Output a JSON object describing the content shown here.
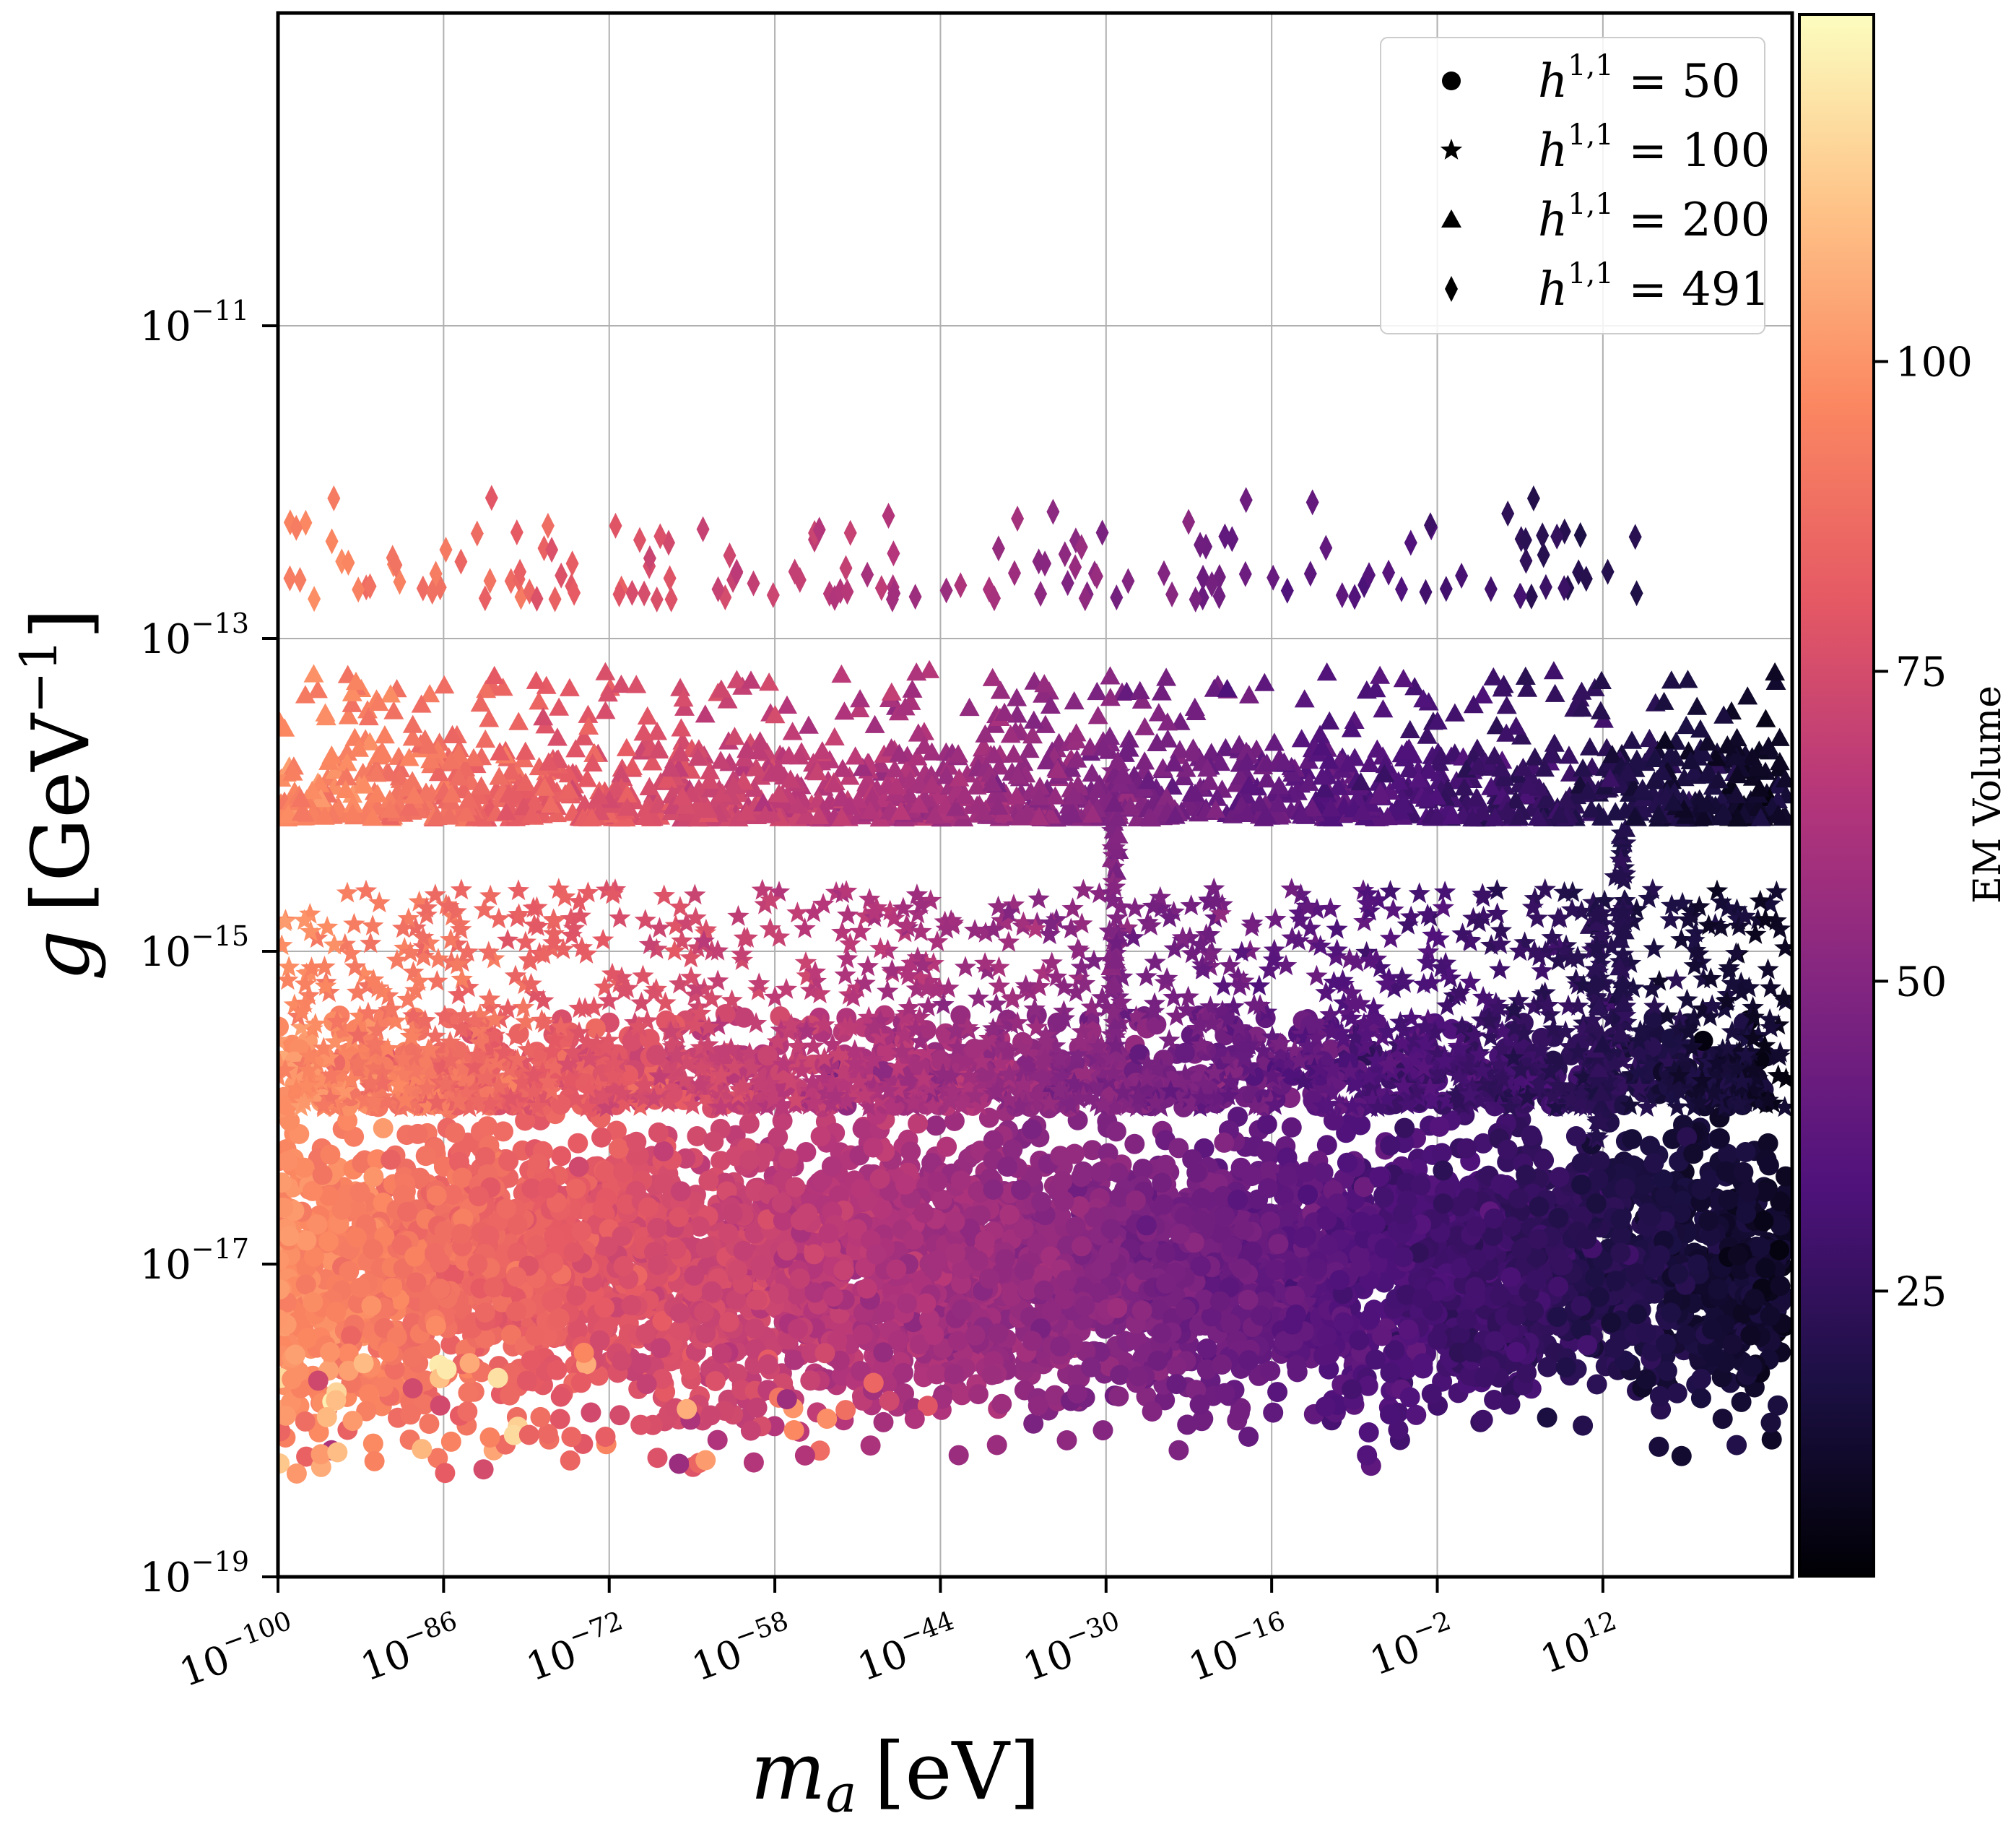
{
  "chart_data": {
    "type": "scatter",
    "x_label": "m_a [eV]",
    "x_label_main": "m",
    "x_label_sub": "a",
    "x_label_unit": "[eV]",
    "y_label": "g [GeV^-1]",
    "y_label_main": "g",
    "y_label_unit": "[GeV",
    "y_label_exp": "−1",
    "y_label_close": "]",
    "x_scale": "log",
    "y_scale": "log",
    "x_range_log10": [
      -100,
      28
    ],
    "y_range_log10": [
      -19,
      -9
    ],
    "x_ticks": [
      {
        "base": "10",
        "exp": "−100",
        "log10": -100
      },
      {
        "base": "10",
        "exp": "−86",
        "log10": -86
      },
      {
        "base": "10",
        "exp": "−72",
        "log10": -72
      },
      {
        "base": "10",
        "exp": "−58",
        "log10": -58
      },
      {
        "base": "10",
        "exp": "−44",
        "log10": -44
      },
      {
        "base": "10",
        "exp": "−30",
        "log10": -30
      },
      {
        "base": "10",
        "exp": "−16",
        "log10": -16
      },
      {
        "base": "10",
        "exp": "−2",
        "log10": -2
      },
      {
        "base": "10",
        "exp": "12",
        "log10": 12
      }
    ],
    "y_ticks": [
      {
        "base": "10",
        "exp": "−11",
        "log10": -11
      },
      {
        "base": "10",
        "exp": "−13",
        "log10": -13
      },
      {
        "base": "10",
        "exp": "−15",
        "log10": -15
      },
      {
        "base": "10",
        "exp": "−17",
        "log10": -17
      },
      {
        "base": "10",
        "exp": "−19",
        "log10": -19
      }
    ],
    "grid": true,
    "legend_position": "top-right",
    "colorbar": {
      "label": "EM Volume",
      "colormap": "magma",
      "range": [
        2,
        128
      ],
      "ticks": [
        "25",
        "50",
        "75",
        "100"
      ],
      "tick_values": [
        25,
        50,
        75,
        100
      ]
    },
    "colormap_stops": [
      "#000004",
      "#1c1044",
      "#4f127b",
      "#812581",
      "#b5367a",
      "#e55964",
      "#fb8761",
      "#fec287",
      "#fcfdbf"
    ],
    "series": [
      {
        "name": "h^{1,1} = 50",
        "label_base": "h",
        "label_sup": "1,1",
        "label_eq": " = 50",
        "marker": "circle",
        "g_log10_band": [
          -18.3,
          -16.0
        ],
        "g_log10_sparse_top": -15.4,
        "em_volume_range": [
          5,
          128
        ],
        "n_points_estimated": 20000
      },
      {
        "name": "h^{1,1} = 100",
        "label_base": "h",
        "label_sup": "1,1",
        "label_eq": " = 100",
        "marker": "star",
        "g_log10_band": [
          -16.0,
          -14.6
        ],
        "em_volume_range": [
          10,
          105
        ],
        "n_points_estimated": 3000
      },
      {
        "name": "h^{1,1} = 200",
        "label_base": "h",
        "label_sup": "1,1",
        "label_eq": " = 200",
        "marker": "triangle",
        "g_log10_band": [
          -14.4,
          -13.2
        ],
        "em_volume_range": [
          8,
          100
        ],
        "n_points_estimated": 2500
      },
      {
        "name": "h^{1,1} = 491",
        "label_base": "h",
        "label_sup": "1,1",
        "label_eq": " = 491",
        "marker": "diamond",
        "g_log10_band": [
          -13.0,
          -12.2
        ],
        "em_volume_range": [
          10,
          95
        ],
        "n_points_estimated": 150
      }
    ]
  }
}
